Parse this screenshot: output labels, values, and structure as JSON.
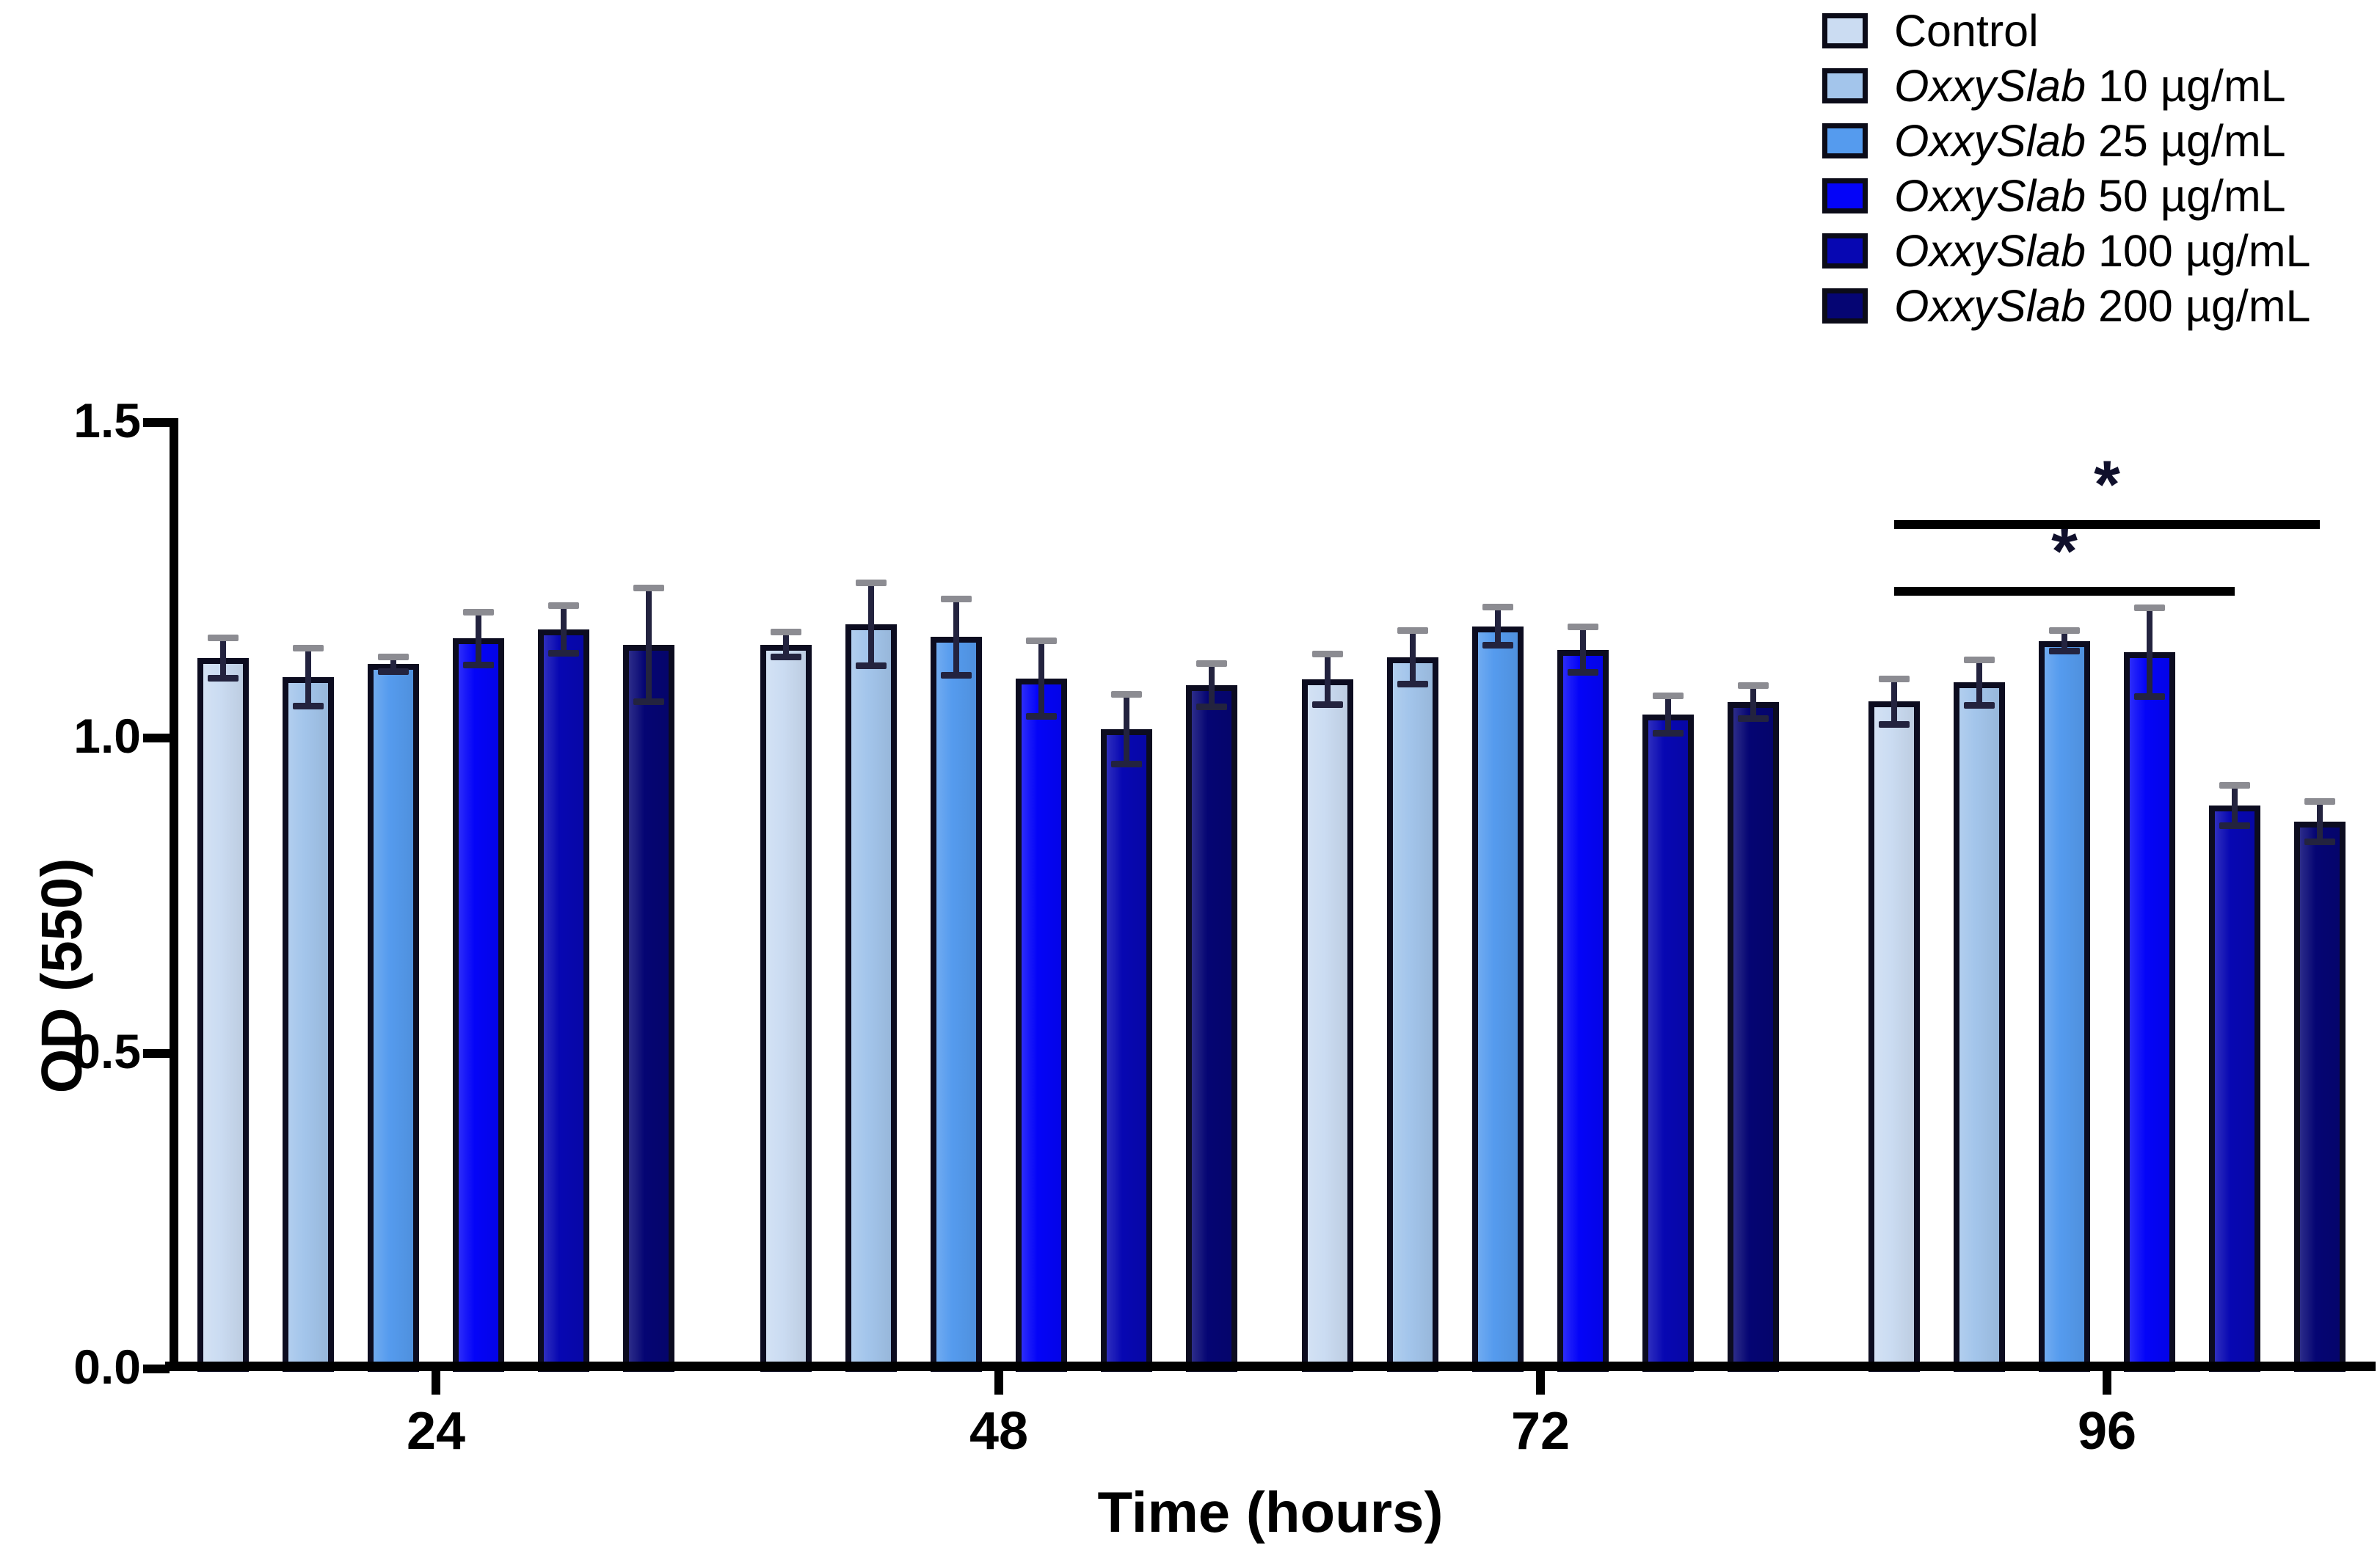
{
  "figure": {
    "background": "#ffffff",
    "axis_color": "#000000"
  },
  "chart_data": {
    "type": "bar",
    "title": "",
    "xlabel": "Time (hours)",
    "ylabel": "OD (550)",
    "categories": [
      "24",
      "48",
      "72",
      "96"
    ],
    "ylim": [
      0.0,
      1.5
    ],
    "yticks": [
      0.0,
      0.5,
      1.0,
      1.5
    ],
    "ytick_labels": [
      "0.0",
      "0.5",
      "1.0",
      "1.5"
    ],
    "grid": false,
    "legend_position": "top-right",
    "error_bar_colors": {
      "stem": "#23233f",
      "upper_cap": "#8c8c92",
      "lower_cap": "#23233f"
    },
    "bar_outline_color": "#0c0c20",
    "series": [
      {
        "name": "Control",
        "name_parts": [
          {
            "text": "Control",
            "italic": false
          }
        ],
        "color": "#cbdcf2",
        "values": [
          1.127,
          1.148,
          1.093,
          1.058
        ],
        "errors": [
          0.032,
          0.02,
          0.04,
          0.036
        ]
      },
      {
        "name": "OxxySlab 10 µg/mL",
        "name_parts": [
          {
            "text": "OxxySlab",
            "italic": true
          },
          {
            "text": " 10 µg/mL",
            "italic": false
          }
        ],
        "color": "#a3c5eb",
        "values": [
          1.097,
          1.18,
          1.128,
          1.088
        ],
        "errors": [
          0.046,
          0.066,
          0.042,
          0.036
        ]
      },
      {
        "name": "OxxySlab 25 µg/mL",
        "name_parts": [
          {
            "text": "OxxySlab",
            "italic": true
          },
          {
            "text": " 25 µg/mL",
            "italic": false
          }
        ],
        "color": "#559bee",
        "values": [
          1.117,
          1.16,
          1.177,
          1.154
        ],
        "errors": [
          0.012,
          0.06,
          0.03,
          0.016
        ]
      },
      {
        "name": "OxxySlab 50 µg/mL",
        "name_parts": [
          {
            "text": "OxxySlab",
            "italic": true
          },
          {
            "text": " 50 µg/mL",
            "italic": false
          }
        ],
        "color": "#0404f8",
        "values": [
          1.158,
          1.094,
          1.14,
          1.136
        ],
        "errors": [
          0.042,
          0.06,
          0.036,
          0.07
        ]
      },
      {
        "name": "OxxySlab 100 µg/mL",
        "name_parts": [
          {
            "text": "OxxySlab",
            "italic": true
          },
          {
            "text": " 100 µg/mL",
            "italic": false
          }
        ],
        "color": "#0707b2",
        "values": [
          1.172,
          1.014,
          1.037,
          0.893
        ],
        "errors": [
          0.038,
          0.055,
          0.03,
          0.032
        ]
      },
      {
        "name": "OxxySlab 200 µg/mL",
        "name_parts": [
          {
            "text": "OxxySlab",
            "italic": true
          },
          {
            "text": " 200 µg/mL",
            "italic": false
          }
        ],
        "color": "#050573",
        "values": [
          1.148,
          1.084,
          1.057,
          0.868
        ],
        "errors": [
          0.09,
          0.034,
          0.026,
          0.032
        ]
      }
    ],
    "significance": [
      {
        "symbol": "*",
        "category": "96",
        "from_series": 0,
        "to_series": 4,
        "od_level": 1.24
      },
      {
        "symbol": "*",
        "category": "96",
        "from_series": 0,
        "to_series": 5,
        "od_level": 1.345
      }
    ]
  }
}
